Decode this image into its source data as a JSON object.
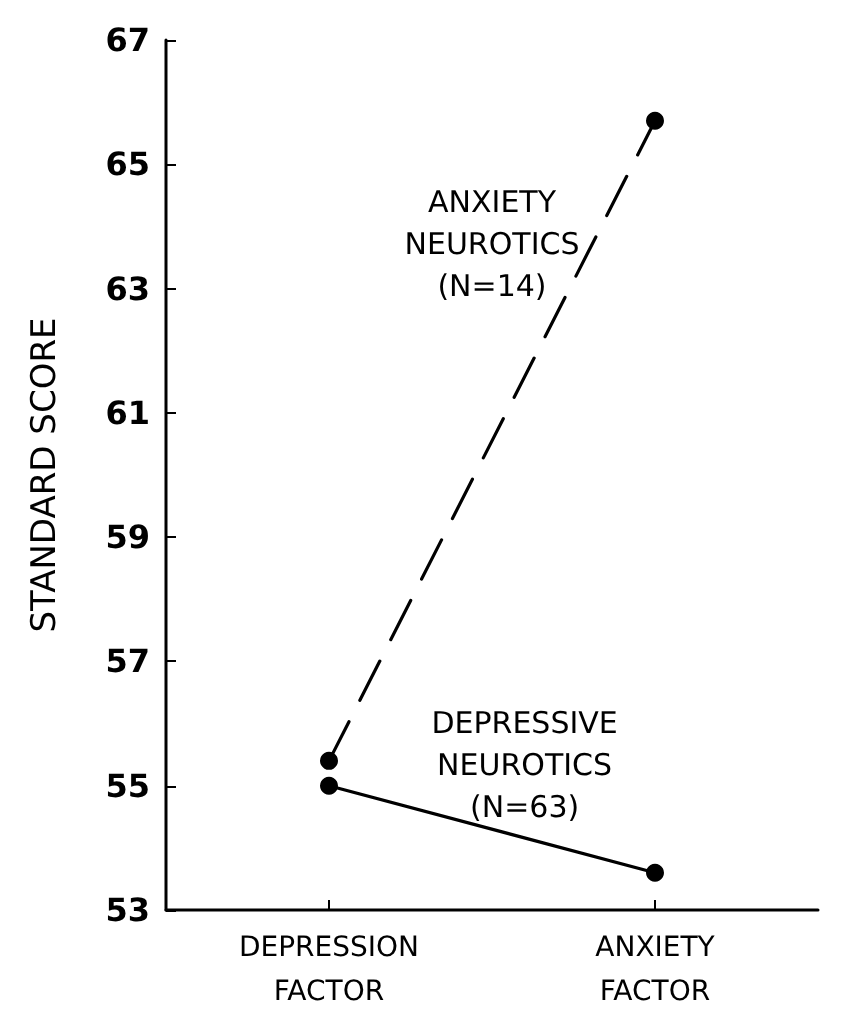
{
  "chart_data": {
    "type": "line",
    "ylabel": "STANDARD SCORE",
    "categories": [
      "DEPRESSION\nFACTOR",
      "ANXIETY\nFACTOR"
    ],
    "series": [
      {
        "name": "ANXIETY\nNEUROTICS\n(N=14)",
        "color": "#000000",
        "values": [
          55.4,
          65.7
        ],
        "line_style": "dashed"
      },
      {
        "name": "DEPRESSIVE\nNEUROTICS\n(N=63)",
        "color": "#000000",
        "values": [
          55.0,
          53.6
        ],
        "line_style": "solid"
      }
    ],
    "ylim": [
      53,
      67
    ],
    "yticks": [
      53,
      55,
      57,
      59,
      61,
      63,
      65,
      67
    ],
    "grid": false,
    "legend": false,
    "marker": "circle"
  }
}
